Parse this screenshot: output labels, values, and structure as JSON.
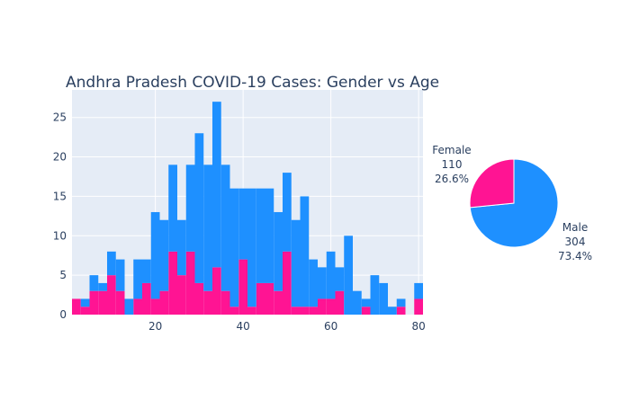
{
  "colors": {
    "plot_bg": "#E5ECF6",
    "grid": "#FFFFFF",
    "text": "#2A3F5F",
    "male": "#1E90FF",
    "female": "#FF1493"
  },
  "chart_data": [
    {
      "type": "bar",
      "title": "Andhra Pradesh COVID-19 Cases: Gender vs Age",
      "xlabel": "",
      "ylabel": "",
      "bar_mode": "stack",
      "bin_width": 2,
      "xlim": [
        1,
        81
      ],
      "ylim": [
        0,
        28.5
      ],
      "x_ticks": [
        20,
        40,
        60,
        80
      ],
      "y_ticks": [
        0,
        5,
        10,
        15,
        20,
        25
      ],
      "grid": true,
      "categories": [
        2,
        4,
        6,
        8,
        10,
        12,
        14,
        16,
        18,
        20,
        22,
        24,
        26,
        28,
        30,
        32,
        34,
        36,
        38,
        40,
        42,
        44,
        46,
        48,
        50,
        52,
        54,
        56,
        58,
        60,
        62,
        64,
        66,
        68,
        70,
        72,
        74,
        76,
        78,
        80
      ],
      "series": [
        {
          "name": "Female",
          "color_key": "female",
          "values": [
            2,
            1,
            3,
            3,
            5,
            3,
            0,
            2,
            4,
            2,
            3,
            8,
            5,
            8,
            4,
            3,
            6,
            3,
            1,
            7,
            1,
            4,
            4,
            3,
            8,
            1,
            1,
            1,
            2,
            2,
            3,
            0,
            0,
            1,
            0,
            0,
            0,
            1,
            0,
            2
          ]
        },
        {
          "name": "Male",
          "color_key": "male",
          "values": [
            0,
            1,
            2,
            1,
            3,
            4,
            2,
            5,
            3,
            11,
            9,
            11,
            7,
            11,
            19,
            16,
            21,
            16,
            15,
            9,
            15,
            12,
            12,
            10,
            10,
            11,
            14,
            6,
            4,
            6,
            3,
            10,
            3,
            1,
            5,
            4,
            1,
            1,
            0,
            2
          ]
        }
      ]
    },
    {
      "type": "pie",
      "title": "",
      "slices": [
        {
          "label": "Male",
          "value": 304,
          "percent": "73.4%",
          "color_key": "male"
        },
        {
          "label": "Female",
          "value": 110,
          "percent": "26.6%",
          "color_key": "female"
        }
      ]
    }
  ]
}
